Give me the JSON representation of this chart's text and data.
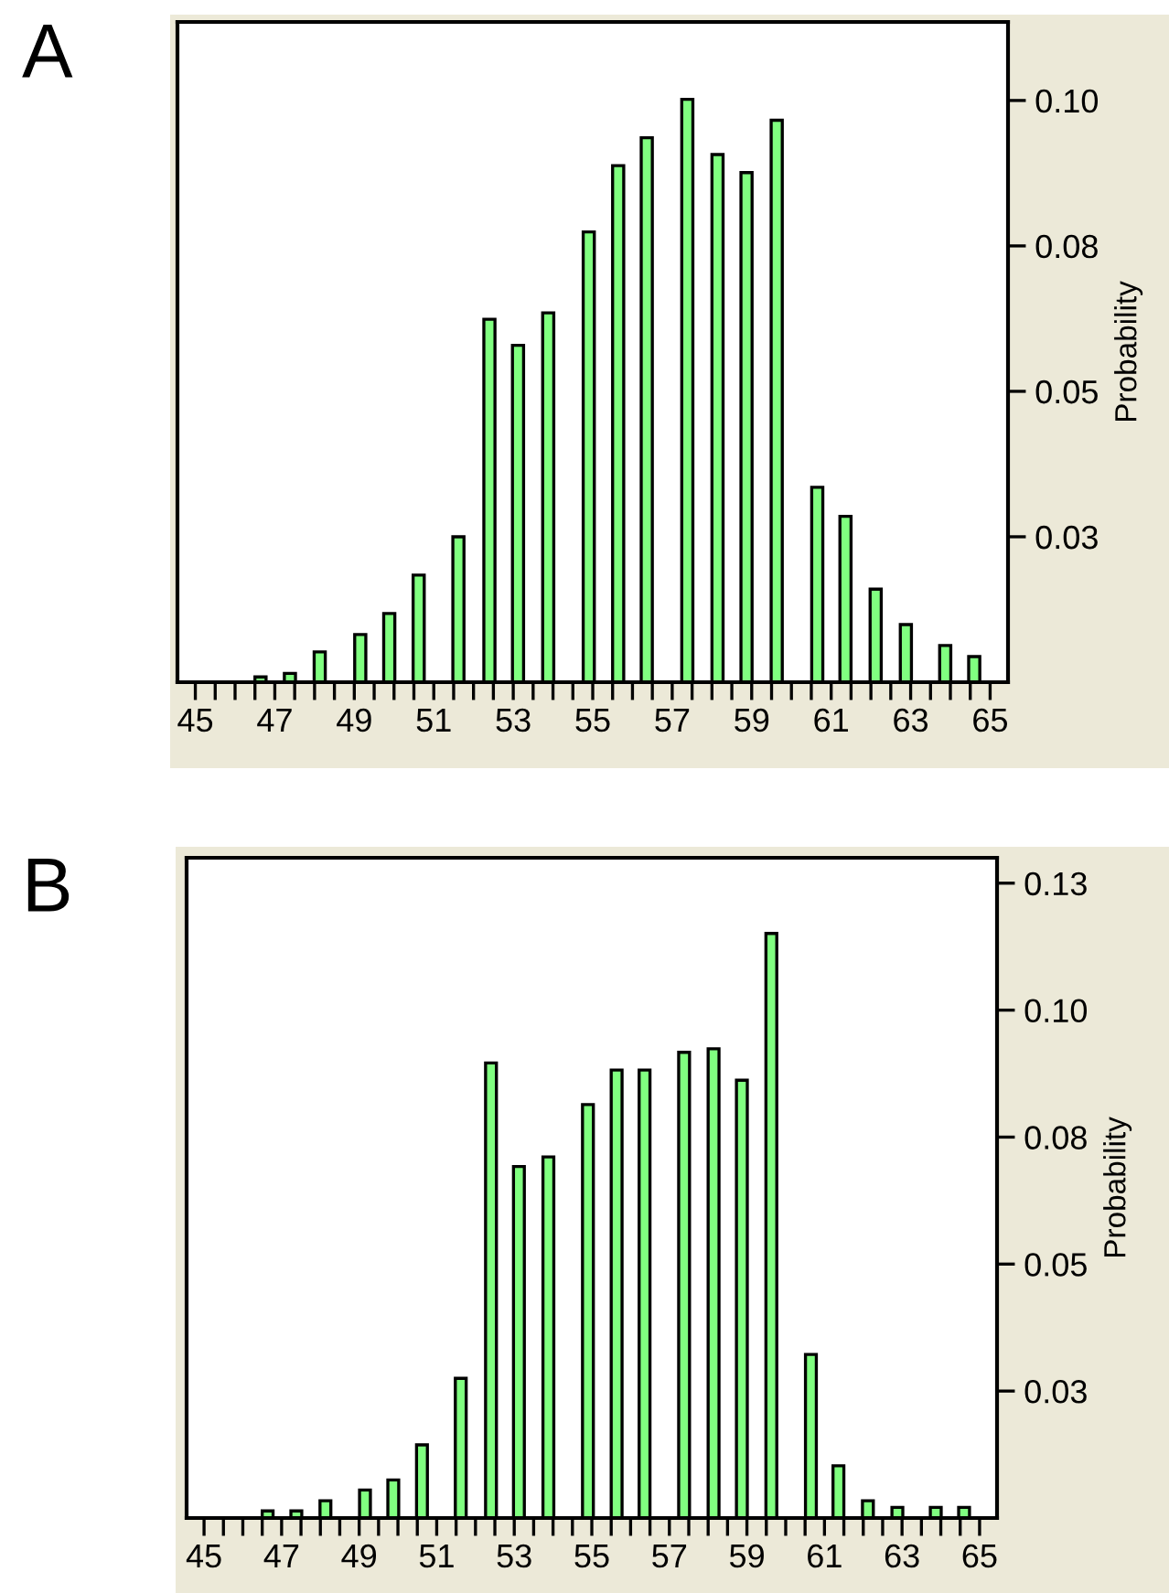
{
  "chart_data": [
    {
      "type": "bar",
      "title": "A",
      "ylabel": "Probability",
      "color": "#80ff80",
      "grid": false,
      "x": [
        46.64,
        47.38,
        48.13,
        49.15,
        49.88,
        50.62,
        51.62,
        52.4,
        53.12,
        53.88,
        54.9,
        55.64,
        56.36,
        57.38,
        58.14,
        58.87,
        59.63,
        60.65,
        61.36,
        62.12,
        62.88,
        63.87,
        64.6
      ],
      "values": [
        0.0009,
        0.0015,
        0.0052,
        0.0082,
        0.0118,
        0.0184,
        0.025,
        0.0624,
        0.0579,
        0.0635,
        0.0774,
        0.0888,
        0.0936,
        0.1002,
        0.0907,
        0.0876,
        0.0966,
        0.0335,
        0.0285,
        0.016,
        0.0099,
        0.0063,
        0.0044
      ],
      "xlim": [
        44.55,
        65.45
      ],
      "ylim": [
        0,
        0.1135
      ],
      "xticks": [
        45,
        {
          "value": 45.5,
          "label": null
        },
        {
          "value": 46,
          "label": null
        },
        {
          "value": 46.5,
          "label": null
        },
        47,
        {
          "value": 47.5,
          "label": null
        },
        {
          "value": 48,
          "label": null
        },
        {
          "value": 48.5,
          "label": null
        },
        49,
        {
          "value": 49.5,
          "label": null
        },
        {
          "value": 50,
          "label": null
        },
        {
          "value": 50.5,
          "label": null
        },
        51,
        {
          "value": 51.5,
          "label": null
        },
        {
          "value": 52,
          "label": null
        },
        {
          "value": 52.5,
          "label": null
        },
        53,
        {
          "value": 53.5,
          "label": null
        },
        {
          "value": 54,
          "label": null
        },
        {
          "value": 54.5,
          "label": null
        },
        55,
        {
          "value": 55.5,
          "label": null
        },
        {
          "value": 56,
          "label": null
        },
        {
          "value": 56.5,
          "label": null
        },
        57,
        {
          "value": 57.5,
          "label": null
        },
        {
          "value": 58,
          "label": null
        },
        {
          "value": 58.5,
          "label": null
        },
        59,
        {
          "value": 59.5,
          "label": null
        },
        {
          "value": 60,
          "label": null
        },
        {
          "value": 60.5,
          "label": null
        },
        61,
        {
          "value": 61.5,
          "label": null
        },
        {
          "value": 62,
          "label": null
        },
        {
          "value": 62.5,
          "label": null
        },
        63,
        {
          "value": 63.5,
          "label": null
        },
        {
          "value": 64,
          "label": null
        },
        {
          "value": 64.5,
          "label": null
        },
        65
      ],
      "yticks": [
        {
          "value": 0.025,
          "label": "0.03"
        },
        {
          "value": 0.05,
          "label": "0.05"
        },
        {
          "value": 0.075,
          "label": "0.08"
        },
        {
          "value": 0.1,
          "label": "0.10"
        }
      ]
    },
    {
      "type": "bar",
      "title": "B",
      "ylabel": "Probability",
      "color": "#80ff80",
      "grid": false,
      "x": [
        46.64,
        47.38,
        48.13,
        49.15,
        49.88,
        50.62,
        51.62,
        52.4,
        53.12,
        53.88,
        54.9,
        55.64,
        56.36,
        57.38,
        58.14,
        58.87,
        59.63,
        60.65,
        61.36,
        62.12,
        62.88,
        63.87,
        64.6
      ],
      "values": [
        0.0014,
        0.0014,
        0.0034,
        0.0055,
        0.0075,
        0.0144,
        0.0275,
        0.0896,
        0.0692,
        0.0711,
        0.0814,
        0.0882,
        0.0882,
        0.0917,
        0.0924,
        0.0862,
        0.1151,
        0.0322,
        0.0103,
        0.0034,
        0.0021,
        0.0021,
        0.0021
      ],
      "xlim": [
        44.55,
        65.45
      ],
      "ylim": [
        0,
        0.13
      ],
      "xticks": [
        45,
        {
          "value": 45.5,
          "label": null
        },
        {
          "value": 46,
          "label": null
        },
        {
          "value": 46.5,
          "label": null
        },
        47,
        {
          "value": 47.5,
          "label": null
        },
        {
          "value": 48,
          "label": null
        },
        {
          "value": 48.5,
          "label": null
        },
        49,
        {
          "value": 49.5,
          "label": null
        },
        {
          "value": 50,
          "label": null
        },
        {
          "value": 50.5,
          "label": null
        },
        51,
        {
          "value": 51.5,
          "label": null
        },
        {
          "value": 52,
          "label": null
        },
        {
          "value": 52.5,
          "label": null
        },
        53,
        {
          "value": 53.5,
          "label": null
        },
        {
          "value": 54,
          "label": null
        },
        {
          "value": 54.5,
          "label": null
        },
        55,
        {
          "value": 55.5,
          "label": null
        },
        {
          "value": 56,
          "label": null
        },
        {
          "value": 56.5,
          "label": null
        },
        57,
        {
          "value": 57.5,
          "label": null
        },
        {
          "value": 58,
          "label": null
        },
        {
          "value": 58.5,
          "label": null
        },
        59,
        {
          "value": 59.5,
          "label": null
        },
        {
          "value": 60,
          "label": null
        },
        {
          "value": 60.5,
          "label": null
        },
        61,
        {
          "value": 61.5,
          "label": null
        },
        {
          "value": 62,
          "label": null
        },
        {
          "value": 62.5,
          "label": null
        },
        63,
        {
          "value": 63.5,
          "label": null
        },
        {
          "value": 64,
          "label": null
        },
        {
          "value": 64.5,
          "label": null
        },
        65
      ],
      "yticks": [
        {
          "value": 0.025,
          "label": "0.03"
        },
        {
          "value": 0.05,
          "label": "0.05"
        },
        {
          "value": 0.075,
          "label": "0.08"
        },
        {
          "value": 0.1,
          "label": "0.10"
        },
        {
          "value": 0.125,
          "label": "0.13"
        }
      ]
    }
  ]
}
